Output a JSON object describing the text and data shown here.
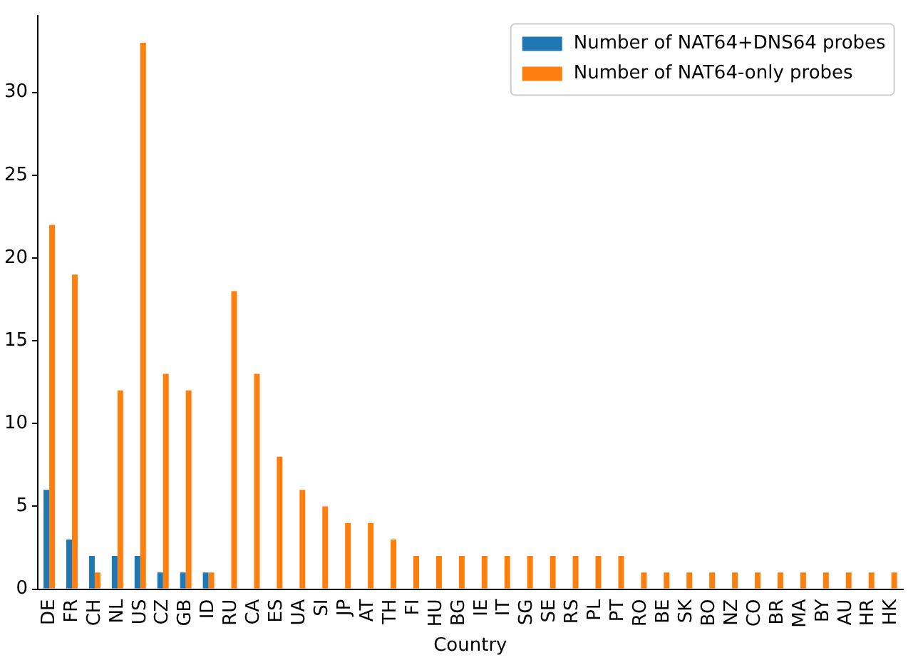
{
  "chart_data": {
    "type": "bar",
    "xlabel": "Country",
    "categories": [
      "DE",
      "FR",
      "CH",
      "NL",
      "US",
      "CZ",
      "GB",
      "ID",
      "RU",
      "CA",
      "ES",
      "UA",
      "SI",
      "JP",
      "AT",
      "TH",
      "FI",
      "HU",
      "BG",
      "IE",
      "IT",
      "SG",
      "SE",
      "RS",
      "PL",
      "PT",
      "RO",
      "BE",
      "SK",
      "BO",
      "NZ",
      "CO",
      "BR",
      "MA",
      "BY",
      "AU",
      "HR",
      "HK"
    ],
    "series": [
      {
        "name": "Number of NAT64+DNS64 probes",
        "color": "#1f77b4",
        "values": [
          6,
          3,
          2,
          2,
          2,
          1,
          1,
          1,
          0,
          0,
          0,
          0,
          0,
          0,
          0,
          0,
          0,
          0,
          0,
          0,
          0,
          0,
          0,
          0,
          0,
          0,
          0,
          0,
          0,
          0,
          0,
          0,
          0,
          0,
          0,
          0,
          0,
          0
        ]
      },
      {
        "name": "Number of NAT64-only probes",
        "color": "#ff7f0e",
        "values": [
          22,
          19,
          1,
          12,
          33,
          13,
          12,
          1,
          18,
          13,
          8,
          6,
          5,
          4,
          4,
          3,
          2,
          2,
          2,
          2,
          2,
          2,
          2,
          2,
          2,
          2,
          1,
          1,
          1,
          1,
          1,
          1,
          1,
          1,
          1,
          1,
          1,
          1
        ]
      }
    ],
    "ylim": [
      0,
      34.65
    ],
    "yticks": [
      0,
      5,
      10,
      15,
      20,
      25,
      30
    ],
    "grid": false,
    "legend": "top right"
  }
}
